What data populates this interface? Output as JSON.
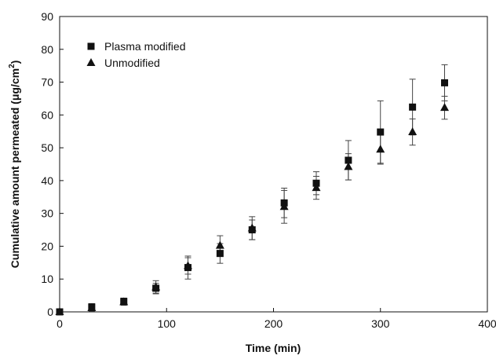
{
  "chart_data": {
    "type": "scatter",
    "xlabel": "Time (min)",
    "ylabel_main": "Cumulative amount permeated (μg/cm",
    "ylabel_sup": "2",
    "ylabel_close": ")",
    "xlim": [
      0,
      400
    ],
    "ylim": [
      0,
      90
    ],
    "xticks": [
      0,
      100,
      200,
      300,
      400
    ],
    "yticks": [
      0,
      10,
      20,
      30,
      40,
      50,
      60,
      70,
      80,
      90
    ],
    "legend_position": "top-left",
    "grid": false,
    "series": [
      {
        "name": "Plasma modified",
        "marker": "square",
        "color": "#111111",
        "x": [
          0,
          30,
          60,
          90,
          120,
          150,
          180,
          210,
          240,
          270,
          300,
          330,
          360
        ],
        "y": [
          0.0,
          1.5,
          3.2,
          7.2,
          13.5,
          17.8,
          25.0,
          33.2,
          39.2,
          46.2,
          54.8,
          62.4,
          69.8
        ],
        "err": [
          0.3,
          1.0,
          1.0,
          1.5,
          3.5,
          3.0,
          3.0,
          4.5,
          3.5,
          6.0,
          9.5,
          8.5,
          5.5
        ]
      },
      {
        "name": "Unmodified",
        "marker": "triangle",
        "color": "#111111",
        "x": [
          0,
          30,
          60,
          90,
          120,
          150,
          180,
          210,
          240,
          270,
          300,
          330,
          360
        ],
        "y": [
          0.0,
          1.2,
          3.0,
          7.5,
          14.0,
          20.2,
          25.5,
          32.0,
          37.8,
          44.2,
          49.5,
          54.8,
          62.2
        ],
        "err": [
          0.3,
          1.0,
          1.0,
          2.0,
          2.5,
          3.0,
          3.5,
          5.0,
          3.5,
          4.0,
          4.5,
          4.0,
          3.5
        ]
      }
    ]
  }
}
